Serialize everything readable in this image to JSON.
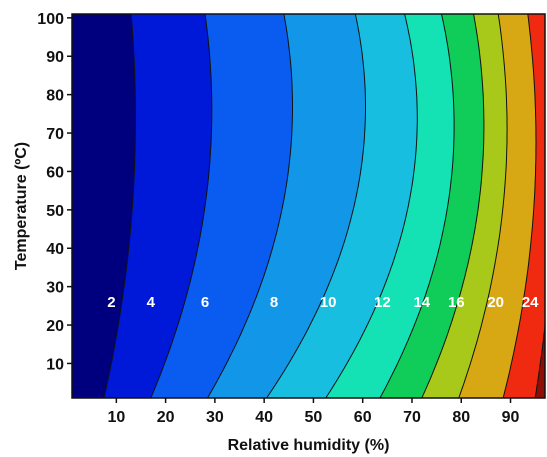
{
  "chart_data": {
    "type": "heatmap",
    "title": "",
    "xlabel": "Relative humidity (%)",
    "ylabel": "Temperature (ºC)",
    "xlim": [
      1,
      97
    ],
    "ylim": [
      1,
      101
    ],
    "x_ticks": [
      "10",
      "20",
      "30",
      "40",
      "50",
      "60",
      "70",
      "80",
      "90"
    ],
    "y_ticks": [
      "10",
      "20",
      "30",
      "40",
      "50",
      "60",
      "70",
      "80",
      "90",
      "100"
    ],
    "contour_levels": [
      "2",
      "4",
      "6",
      "8",
      "10",
      "12",
      "14",
      "16",
      "20",
      "24"
    ],
    "label_temperature": 26,
    "label_humidity": [
      9,
      17,
      28,
      42,
      53,
      64,
      72,
      79,
      87,
      94
    ],
    "boundaries": [
      {
        "rh_at_bottom": 7.5,
        "rh_at_top": 13,
        "bend": 0.012
      },
      {
        "rh_at_bottom": 17,
        "rh_at_top": 28,
        "bend": 0.022
      },
      {
        "rh_at_bottom": 28.5,
        "rh_at_top": 44,
        "bend": 0.03
      },
      {
        "rh_at_bottom": 40.5,
        "rh_at_top": 58.5,
        "bend": 0.035
      },
      {
        "rh_at_bottom": 52.5,
        "rh_at_top": 68.5,
        "bend": 0.035
      },
      {
        "rh_at_bottom": 63.5,
        "rh_at_top": 76,
        "bend": 0.03
      },
      {
        "rh_at_bottom": 72,
        "rh_at_top": 82.5,
        "bend": 0.025
      },
      {
        "rh_at_bottom": 79.5,
        "rh_at_top": 87.5,
        "bend": 0.02
      },
      {
        "rh_at_bottom": 88.5,
        "rh_at_top": 93.5,
        "bend": 0.015
      },
      {
        "rh_at_bottom": 95,
        "rh_at_top": 97.5,
        "bend": 0.01
      }
    ],
    "band_colors": [
      "#00007f",
      "#0018d8",
      "#0a5cf0",
      "#1296e8",
      "#18bee0",
      "#14e2b4",
      "#10cc58",
      "#a8c81a",
      "#d8a814",
      "#f02a10",
      "#8c0e06"
    ]
  }
}
